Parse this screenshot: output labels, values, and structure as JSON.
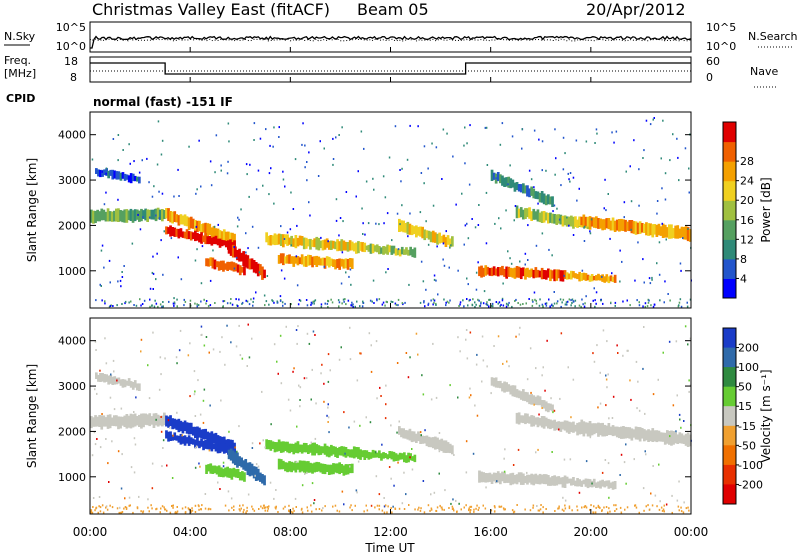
{
  "header": {
    "title": "Christmas Valley East (fitACF)",
    "beam": "Beam 05",
    "date": "20/Apr/2012"
  },
  "status": {
    "nsky_label": "N.Sky",
    "nsky_ticks": [
      "10^5",
      "10^0"
    ],
    "nsearch_label": "N.Search",
    "nsearch_ticks": [
      "10^5",
      "10^0"
    ],
    "freq_label_1": "Freq.",
    "freq_label_2": "[MHz]",
    "freq_ticks": [
      "18",
      "8"
    ],
    "nave_label": "Nave",
    "nave_ticks": [
      "60",
      "0"
    ],
    "cpid_label": "CPID",
    "cpid_text": "normal (fast) -151 IF"
  },
  "chart_data": [
    {
      "type": "heatmap",
      "name": "power",
      "ylabel": "Slant Range [km]",
      "ylim": [
        180,
        4500
      ],
      "yticks": [
        "1000",
        "2000",
        "3000",
        "4000"
      ],
      "xlim": [
        0,
        24
      ],
      "colorbar_label": "Power [dB]",
      "colorbar_ticks": [
        "4",
        "8",
        "12",
        "16",
        "20",
        "24",
        "28"
      ],
      "colorbar_colors": [
        "#0000ff",
        "#2255cc",
        "#2f8a78",
        "#55a060",
        "#a0c040",
        "#f0d020",
        "#f4a000",
        "#f06000",
        "#e00000"
      ]
    },
    {
      "type": "heatmap",
      "name": "velocity",
      "ylabel": "Slant Range [km]",
      "ylim": [
        180,
        4500
      ],
      "yticks": [
        "1000",
        "2000",
        "3000",
        "4000"
      ],
      "xlim": [
        0,
        24
      ],
      "colorbar_label": "Velocity [m s⁻¹]",
      "colorbar_ticks": [
        "200",
        "100",
        "50",
        "15",
        "-15",
        "-50",
        "-100",
        "-200"
      ],
      "colorbar_colors": [
        "#1a3cc8",
        "#2f6aaa",
        "#2f8a40",
        "#66cc33",
        "#c8c8c0",
        "#f0a030",
        "#f07000",
        "#e83000",
        "#e00000"
      ]
    }
  ],
  "xaxis": {
    "ticks": [
      "00:00",
      "04:00",
      "08:00",
      "12:00",
      "16:00",
      "20:00",
      "00:00"
    ],
    "label": "Time UT"
  }
}
